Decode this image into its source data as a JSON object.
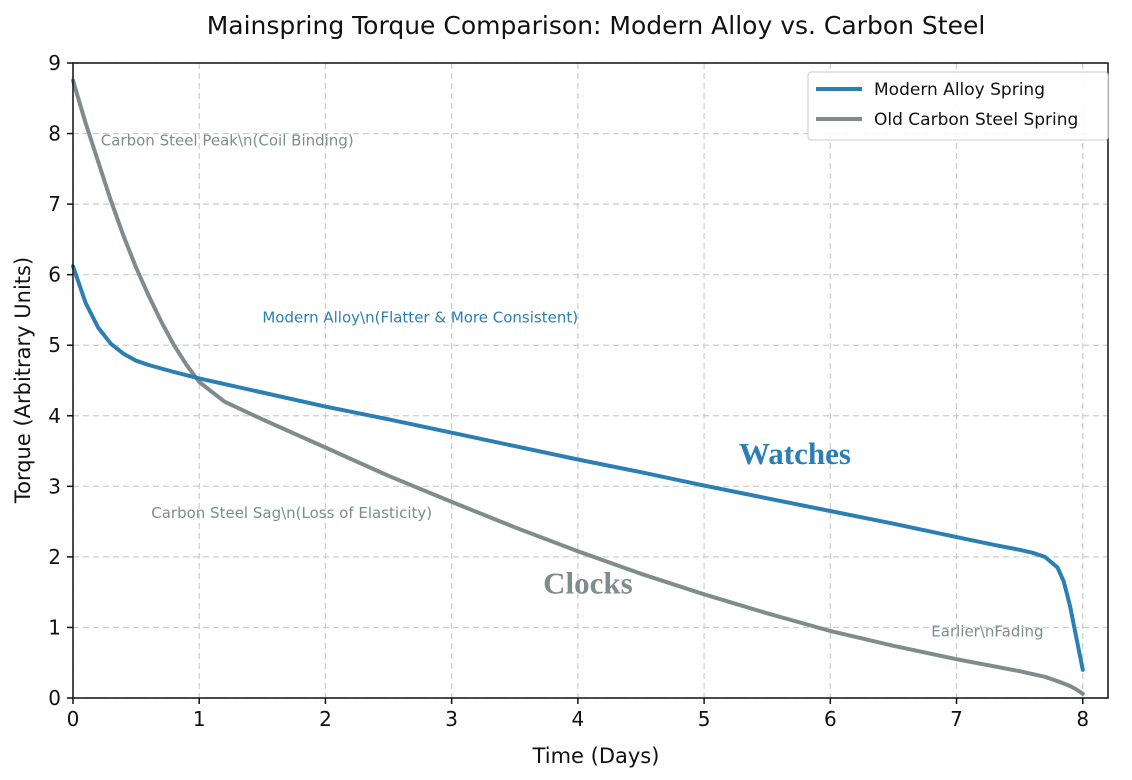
{
  "chart_data": {
    "type": "line",
    "title": "Mainspring Torque Comparison: Modern Alloy vs. Carbon Steel",
    "xlabel": "Time (Days)",
    "ylabel": "Torque (Arbitrary Units)",
    "xlim": [
      0,
      8.2
    ],
    "ylim": [
      0,
      9
    ],
    "xticks": [
      "0",
      "1",
      "2",
      "3",
      "4",
      "5",
      "6",
      "7",
      "8"
    ],
    "yticks": [
      "0",
      "1",
      "2",
      "3",
      "4",
      "5",
      "6",
      "7",
      "8",
      "9"
    ],
    "grid": true,
    "legend_position": "top-right",
    "series": [
      {
        "name": "Modern Alloy Spring",
        "color": "#2b7fb3",
        "x": [
          0,
          0.1,
          0.2,
          0.3,
          0.4,
          0.5,
          0.6,
          0.8,
          1.0,
          1.5,
          2.0,
          2.5,
          3.0,
          3.5,
          4.0,
          4.5,
          5.0,
          5.5,
          6.0,
          6.5,
          7.0,
          7.3,
          7.5,
          7.6,
          7.7,
          7.8,
          7.85,
          7.9,
          7.95,
          8.0
        ],
        "y": [
          6.12,
          5.6,
          5.25,
          5.02,
          4.88,
          4.78,
          4.72,
          4.62,
          4.53,
          4.33,
          4.13,
          3.95,
          3.76,
          3.57,
          3.38,
          3.2,
          3.01,
          2.83,
          2.65,
          2.47,
          2.28,
          2.17,
          2.1,
          2.06,
          2.0,
          1.85,
          1.65,
          1.3,
          0.85,
          0.4
        ]
      },
      {
        "name": "Old Carbon Steel Spring",
        "color": "#7f8c8d",
        "x": [
          0,
          0.1,
          0.2,
          0.3,
          0.4,
          0.5,
          0.6,
          0.7,
          0.8,
          0.9,
          1.0,
          1.2,
          1.5,
          2.0,
          2.5,
          3.0,
          3.5,
          4.0,
          4.5,
          5.0,
          5.5,
          6.0,
          6.5,
          7.0,
          7.5,
          7.7,
          7.8,
          7.9,
          7.95,
          8.0
        ],
        "y": [
          8.75,
          8.15,
          7.6,
          7.05,
          6.55,
          6.1,
          5.7,
          5.33,
          5.0,
          4.72,
          4.48,
          4.2,
          3.95,
          3.55,
          3.15,
          2.78,
          2.42,
          2.08,
          1.76,
          1.47,
          1.2,
          0.95,
          0.74,
          0.55,
          0.38,
          0.3,
          0.24,
          0.17,
          0.12,
          0.06
        ]
      }
    ],
    "annotations": [
      {
        "text": "Carbon Steel Peak\\n(Coil Binding)",
        "x": 0.22,
        "y": 7.83,
        "color": "#7f8c8d",
        "style": "normal"
      },
      {
        "text": "Modern Alloy\\n(Flatter & More Consistent)",
        "x": 1.5,
        "y": 5.32,
        "color": "#2b7fb3",
        "style": "normal"
      },
      {
        "text": "Carbon Steel Sag\\n(Loss of Elasticity)",
        "x": 0.62,
        "y": 2.55,
        "color": "#7f8c8d",
        "style": "normal"
      },
      {
        "text": "Earlier\\nFading",
        "x": 6.8,
        "y": 0.87,
        "color": "#7f8c8d",
        "style": "normal"
      },
      {
        "text": "Watches",
        "x": 5.72,
        "y": 3.32,
        "color": "#2b7fb3",
        "style": "big"
      },
      {
        "text": "Clocks",
        "x": 4.08,
        "y": 1.48,
        "color": "#7f8c8d",
        "style": "big"
      }
    ]
  }
}
